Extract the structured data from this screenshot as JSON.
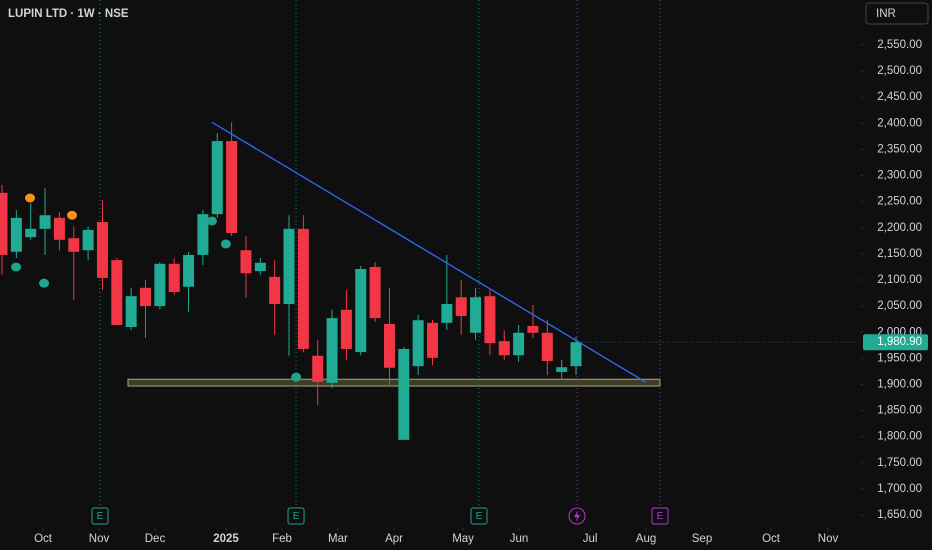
{
  "chart_data": {
    "type": "candlestick",
    "title": "LUPIN LTD · 1W · NSE",
    "currency": "INR",
    "up_color": "#22ab94",
    "down_color": "#f23645",
    "open": [
      2267,
      2154,
      2182,
      2198,
      2219,
      2180,
      2157,
      2211,
      2138,
      2010,
      2085,
      2050,
      2131,
      2087,
      2148,
      2226,
      2366,
      2157,
      2117,
      2106,
      2054,
      2198,
      1955,
      1903,
      2043,
      1962,
      2125,
      2016,
      1794,
      1935,
      2018,
      2018,
      2067,
      1999,
      2069,
      1983,
      1956,
      2012,
      1999,
      1924,
      1935
    ],
    "high": [
      2282,
      2234,
      2247,
      2276,
      2230,
      2203,
      2203,
      2253,
      2142,
      2085,
      2100,
      2134,
      2142,
      2154,
      2234,
      2381,
      2402,
      2184,
      2142,
      2138,
      2224,
      2224,
      1985,
      2043,
      2081,
      2127,
      2134,
      2085,
      1972,
      2033,
      2024,
      2148,
      2100,
      2085,
      2081,
      2004,
      2014,
      2052,
      2024,
      1947,
      1991
    ],
    "low": [
      2110,
      2142,
      2177,
      2148,
      2157,
      2062,
      2138,
      2081,
      2014,
      2004,
      1989,
      2043,
      2071,
      2039,
      2129,
      2219,
      2184,
      2066,
      2110,
      1995,
      1955,
      1962,
      1861,
      1893,
      1947,
      1956,
      2020,
      1899,
      1794,
      1918,
      1937,
      2004,
      1995,
      1985,
      1956,
      1947,
      1943,
      1989,
      1918,
      1912,
      1918
    ],
    "close": [
      2148,
      2219,
      2198,
      2224,
      2177,
      2154,
      2196,
      2104,
      2014,
      2069,
      2050,
      2131,
      2077,
      2148,
      2226,
      2366,
      2190,
      2113,
      2133,
      2054,
      2198,
      1968,
      1905,
      2027,
      1968,
      2121,
      2027,
      1932,
      1968,
      2023,
      1951,
      2054,
      2031,
      2067,
      1979,
      1956,
      1999,
      1999,
      1945,
      1933,
      1980.9
    ],
    "last_price": {
      "value": 1980.9,
      "label": "1,980.90"
    },
    "xlim": [
      -0.14,
      59.79
    ],
    "ylim": [
      1625,
      2580
    ],
    "yticks": [
      {
        "value": 1650,
        "label": "1,650.00"
      },
      {
        "value": 1700,
        "label": "1,700.00"
      },
      {
        "value": 1750,
        "label": "1,750.00"
      },
      {
        "value": 1800,
        "label": "1,800.00"
      },
      {
        "value": 1850,
        "label": "1,850.00"
      },
      {
        "value": 1900,
        "label": "1,900.00"
      },
      {
        "value": 1950,
        "label": "1,950.00"
      },
      {
        "value": 2000,
        "label": "2,000.00"
      },
      {
        "value": 2050,
        "label": "2,050.00"
      },
      {
        "value": 2100,
        "label": "2,100.00"
      },
      {
        "value": 2150,
        "label": "2,150.00"
      },
      {
        "value": 2200,
        "label": "2,200.00"
      },
      {
        "value": 2250,
        "label": "2,250.00"
      },
      {
        "value": 2300,
        "label": "2,300.00"
      },
      {
        "value": 2350,
        "label": "2,350.00"
      },
      {
        "value": 2400,
        "label": "2,400.00"
      },
      {
        "value": 2450,
        "label": "2,450.00"
      },
      {
        "value": 2500,
        "label": "2,500.00"
      },
      {
        "value": 2550,
        "label": "2,550.00"
      }
    ],
    "xticks": [
      {
        "value": 2.86,
        "label": "Oct"
      },
      {
        "value": 6.76,
        "label": "Nov"
      },
      {
        "value": 10.66,
        "label": "Dec"
      },
      {
        "value": 15.61,
        "label": "2025"
      },
      {
        "value": 19.51,
        "label": "Feb"
      },
      {
        "value": 23.41,
        "label": "Mar"
      },
      {
        "value": 27.32,
        "label": "Apr"
      },
      {
        "value": 32.13,
        "label": "May"
      },
      {
        "value": 36.03,
        "label": "Jun"
      },
      {
        "value": 40.98,
        "label": "Jul"
      },
      {
        "value": 44.88,
        "label": "Aug"
      },
      {
        "value": 48.78,
        "label": "Sep"
      },
      {
        "value": 53.59,
        "label": "Oct"
      },
      {
        "value": 57.56,
        "label": "Nov"
      }
    ],
    "signals": [
      {
        "color": "#f7931a",
        "x": [
          1.95,
          4.88
        ],
        "y": [
          2257,
          2224
        ]
      },
      {
        "color": "#1fa58f",
        "x": [
          0.98,
          2.93,
          14.63,
          15.6,
          20.5
        ],
        "y": [
          2125,
          2094,
          2213,
          2169,
          1914
        ]
      }
    ],
    "trendline": {
      "x": [
        14.63,
        44.88
      ],
      "y": [
        2402,
        1904
      ],
      "color": "#2f6bff"
    },
    "zone": {
      "xlim": [
        8.78,
        45.85
      ],
      "ylim": [
        1897,
        1910
      ]
    },
    "events": [
      {
        "x": 6.83,
        "label": "E",
        "color": "#1fa58f"
      },
      {
        "x": 20.49,
        "label": "E",
        "color": "#1fa58f"
      },
      {
        "x": 33.24,
        "label": "E",
        "color": "#1fa58f"
      },
      {
        "x": 40.07,
        "color": "#b03ad0"
      },
      {
        "x": 45.85,
        "label": "E",
        "color": "#b03ad0"
      }
    ]
  }
}
